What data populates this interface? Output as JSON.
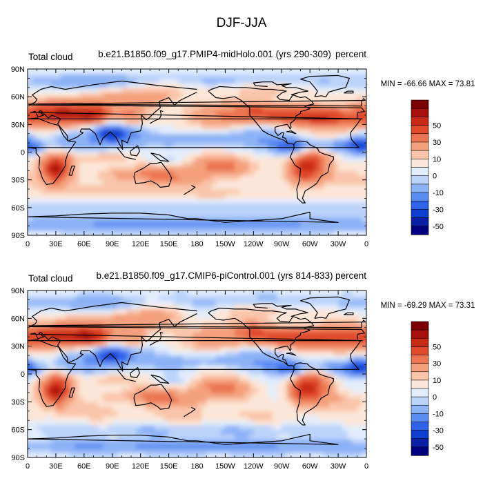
{
  "figure_title": "DJF-JJA",
  "colors": {
    "levels": [
      -60,
      -50,
      -40,
      -30,
      -20,
      -10,
      -5,
      0,
      5,
      10,
      20,
      30,
      40,
      50,
      60
    ],
    "bins": [
      "#00007f",
      "#0a1fa6",
      "#0f3fd0",
      "#2e63ea",
      "#5b8cf2",
      "#8db3f7",
      "#bcd3fa",
      "#e2edfc",
      "#fce6d7",
      "#fac5aa",
      "#f4a07c",
      "#ec7451",
      "#e04a2c",
      "#c92a14",
      "#a5100c",
      "#7a0000"
    ],
    "land_outline": "#000000"
  },
  "chart_data": [
    {
      "type": "heatmap",
      "title": "b.e21.B1850.f09_g17.PMIP4-midHolo.001 (yrs 290-309)",
      "left_label": "Total cloud",
      "right_label": "percent",
      "stats_text": "MIN = -66.66 MAX =  73.81",
      "min": -66.66,
      "max": 73.81,
      "x_tick_labels": [
        "0",
        "30E",
        "60E",
        "90E",
        "120E",
        "150E",
        "180",
        "150W",
        "120W",
        "90W",
        "60W",
        "30W",
        "0"
      ],
      "y_tick_labels": [
        "90S",
        "60S",
        "30S",
        "0",
        "30N",
        "60N",
        "90N"
      ],
      "xlim": [
        0,
        360
      ],
      "ylim": [
        -90,
        90
      ],
      "colorbar_labels": [
        "-50",
        "-30",
        "-10",
        "0",
        "10",
        "30",
        "50"
      ]
    },
    {
      "type": "heatmap",
      "title": "b.e21.B1850.f09_g17.CMIP6-piControl.001 (yrs 814-833)",
      "left_label": "Total cloud",
      "right_label": "percent",
      "stats_text": "MIN = -69.29 MAX =  73.31",
      "min": -69.29,
      "max": 73.31,
      "x_tick_labels": [
        "0",
        "30E",
        "60E",
        "90E",
        "120E",
        "150E",
        "180",
        "150W",
        "120W",
        "90W",
        "60W",
        "30W",
        "0"
      ],
      "y_tick_labels": [
        "90S",
        "60S",
        "30S",
        "0",
        "30N",
        "60N",
        "90N"
      ],
      "xlim": [
        0,
        360
      ],
      "ylim": [
        -90,
        90
      ],
      "colorbar_labels": [
        "-50",
        "-30",
        "-10",
        "0",
        "10",
        "30",
        "50"
      ]
    }
  ]
}
